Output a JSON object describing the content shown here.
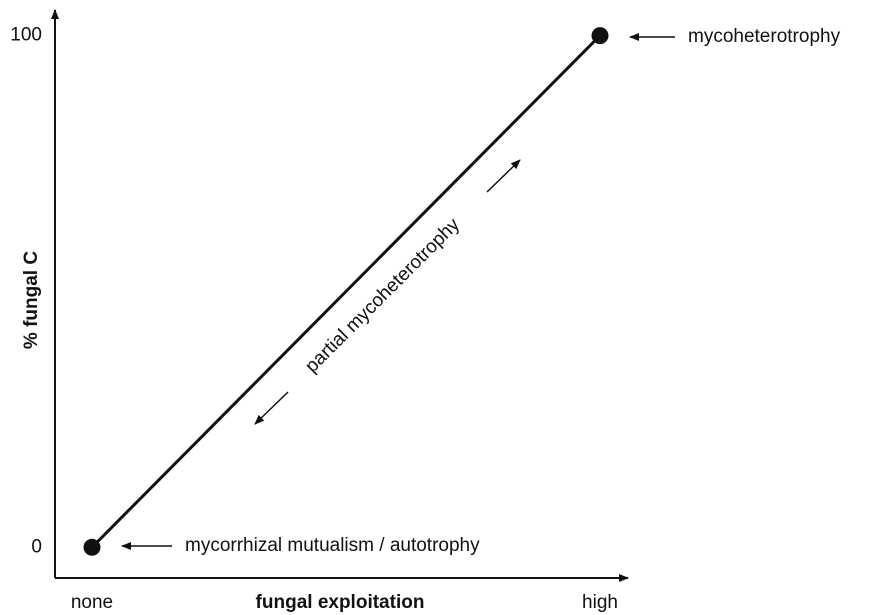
{
  "chart_data": {
    "type": "line",
    "x_label": "fungal exploitation",
    "y_label": "% fungal C",
    "categories": [
      "none",
      "high"
    ],
    "values": [
      0,
      100
    ],
    "color": "#111111",
    "ylim": [
      -6,
      105
    ],
    "yticks": [
      0,
      100
    ],
    "grid": false,
    "annotations": [
      "mycoheterotrophy",
      "mycorrhizal mutualism / autotrophy",
      "partial mycoheterotrophy"
    ]
  }
}
